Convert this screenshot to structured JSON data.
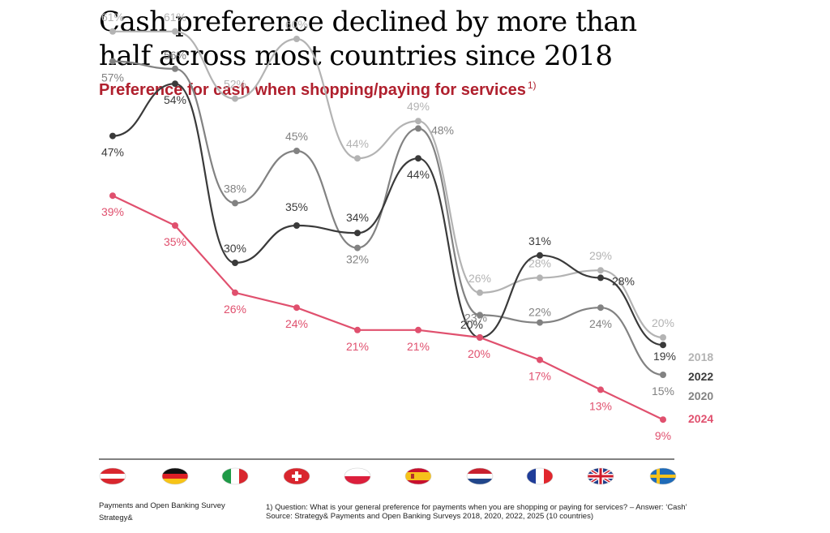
{
  "title_line1": "Cash preference declined by more than",
  "title_line2": "half across most countries since 2018",
  "subtitle": "Preference for cash when shopping/paying for services",
  "subtitle_note": "1)",
  "chart_data": {
    "type": "line",
    "title": "Cash preference declined by more than half across most countries since 2018",
    "subtitle": "Preference for cash when shopping/paying for services",
    "xlabel": "",
    "ylabel": "",
    "ylim": [
      0,
      70
    ],
    "categories": [
      "Austria",
      "Germany",
      "Italy",
      "Switzerland",
      "Poland",
      "Spain",
      "Netherlands",
      "France",
      "United Kingdom",
      "Sweden"
    ],
    "series": [
      {
        "name": "2018",
        "color": "#b3b3b3",
        "values": [
          61,
          61,
          52,
          60,
          44,
          49,
          26,
          28,
          29,
          20
        ],
        "labels": [
          "61%",
          "61%",
          "52%",
          "60%",
          "44%",
          "49%",
          "26%",
          "28%",
          "29%",
          "20%"
        ]
      },
      {
        "name": "2020",
        "color": "#828282",
        "values": [
          57,
          56,
          38,
          45,
          32,
          48,
          23,
          22,
          24,
          15
        ],
        "labels": [
          "57%",
          "56%",
          "38%",
          "45%",
          "32%",
          "48%",
          "23%",
          "22%",
          "24%",
          "15%"
        ]
      },
      {
        "name": "2022",
        "color": "#3a3a3a",
        "values": [
          47,
          54,
          30,
          35,
          34,
          44,
          20,
          31,
          28,
          19
        ],
        "labels": [
          "47%",
          "54%",
          "30%",
          "35%",
          "34%",
          "44%",
          "20%",
          "31%",
          "28%",
          "19%"
        ]
      },
      {
        "name": "2024",
        "color": "#e0506e",
        "values": [
          39,
          35,
          26,
          24,
          21,
          21,
          20,
          17,
          13,
          9
        ],
        "labels": [
          "39%",
          "35%",
          "26%",
          "24%",
          "21%",
          "21%",
          "20%",
          "17%",
          "13%",
          "9%"
        ]
      }
    ],
    "legend_position": "right"
  },
  "flags": [
    {
      "country": "Austria",
      "icon": "austria-flag-icon"
    },
    {
      "country": "Germany",
      "icon": "germany-flag-icon"
    },
    {
      "country": "Italy",
      "icon": "italy-flag-icon"
    },
    {
      "country": "Switzerland",
      "icon": "switzerland-flag-icon"
    },
    {
      "country": "Poland",
      "icon": "poland-flag-icon"
    },
    {
      "country": "Spain",
      "icon": "spain-flag-icon"
    },
    {
      "country": "Netherlands",
      "icon": "netherlands-flag-icon"
    },
    {
      "country": "France",
      "icon": "france-flag-icon"
    },
    {
      "country": "United Kingdom",
      "icon": "uk-flag-icon"
    },
    {
      "country": "Sweden",
      "icon": "sweden-flag-icon"
    }
  ],
  "footer": {
    "survey": "Payments and Open Banking Survey",
    "org": "Strategy&",
    "note_line1": "1) Question: What is your general preference for payments when you are shopping or paying for services? – Answer: ‘Cash’",
    "note_line2": "Source: Strategy& Payments and Open Banking Surveys 2018, 2020, 2022, 2025 (10 countries)"
  }
}
